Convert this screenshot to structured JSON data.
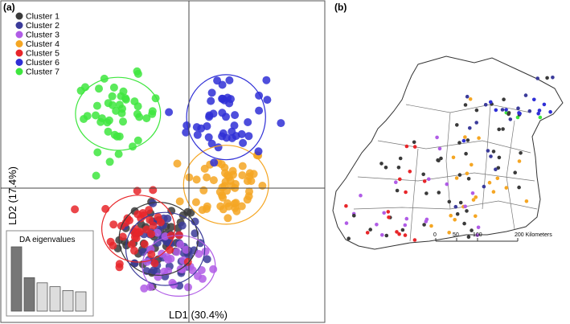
{
  "chart_data": [
    {
      "panel_label": "(a)",
      "type": "scatter",
      "xlabel": "LD1 (30.4%)",
      "ylabel": "LD2 (17.4%)",
      "xlim": [
        -5,
        5
      ],
      "ylim": [
        -5,
        5
      ],
      "legend_position": "top-left",
      "series": [
        {
          "name": "Cluster 1",
          "color": "#3a3a3a",
          "center": [
            -0.9,
            -1.5
          ],
          "spread": [
            1.3,
            1.2
          ],
          "n": 45
        },
        {
          "name": "Cluster 2",
          "color": "#3b3b9a",
          "center": [
            -0.7,
            -1.8
          ],
          "spread": [
            1.3,
            1.2
          ],
          "n": 45
        },
        {
          "name": "Cluster 3",
          "color": "#b05ce6",
          "center": [
            -0.3,
            -2.3
          ],
          "spread": [
            1.2,
            1.0
          ],
          "n": 30
        },
        {
          "name": "Cluster 4",
          "color": "#f5a623",
          "center": [
            1.1,
            0.1
          ],
          "spread": [
            1.4,
            1.3
          ],
          "n": 55
        },
        {
          "name": "Cluster 5",
          "color": "#e8262a",
          "center": [
            -1.5,
            -1.2
          ],
          "spread": [
            1.2,
            1.1
          ],
          "n": 40
        },
        {
          "name": "Cluster 6",
          "color": "#2f2fd6",
          "center": [
            1.1,
            2.1
          ],
          "spread": [
            1.3,
            1.4
          ],
          "n": 45
        },
        {
          "name": "Cluster 7",
          "color": "#3ee63e",
          "center": [
            -2.1,
            2.2
          ],
          "spread": [
            1.4,
            1.2
          ],
          "n": 45
        }
      ],
      "inset": {
        "title": "DA eigenvalues",
        "type": "bar",
        "values": [
          1.0,
          0.52,
          0.44,
          0.38,
          0.32,
          0.3
        ],
        "colors": [
          "#777777",
          "#777777",
          "#dddddd",
          "#dddddd",
          "#dddddd",
          "#dddddd"
        ]
      }
    },
    {
      "panel_label": "(b)",
      "type": "map",
      "scale_ticks": [
        "0",
        "50",
        "100",
        "200 Kilometers"
      ]
    }
  ]
}
